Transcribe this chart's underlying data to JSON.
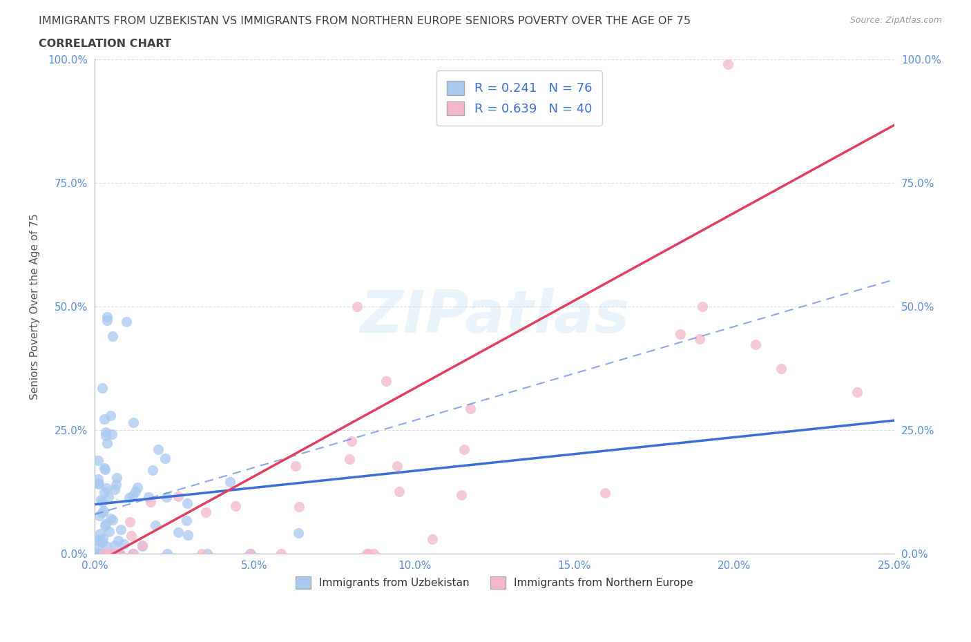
{
  "title": "IMMIGRANTS FROM UZBEKISTAN VS IMMIGRANTS FROM NORTHERN EUROPE SENIORS POVERTY OVER THE AGE OF 75",
  "subtitle": "CORRELATION CHART",
  "source": "Source: ZipAtlas.com",
  "ylabel": "Seniors Poverty Over the Age of 75",
  "color_uzbekistan": "#a8c8f0",
  "color_northern_europe": "#f4b8cc",
  "trend_color_uzbekistan": "#3a6fd8",
  "trend_color_northern_europe": "#e8406080",
  "trend_color_northern_europe_solid": "#e04060",
  "R_uzbekistan": 0.241,
  "N_uzbekistan": 76,
  "R_northern_europe": 0.639,
  "N_northern_europe": 40,
  "legend_label_uzbekistan": "Immigrants from Uzbekistan",
  "legend_label_northern_europe": "Immigrants from Northern Europe",
  "watermark": "ZIPatlas",
  "background_color": "#ffffff",
  "title_color": "#404040",
  "tick_color": "#5b8dd9",
  "ylabel_color": "#555555",
  "grid_color": "#d8d8d8"
}
